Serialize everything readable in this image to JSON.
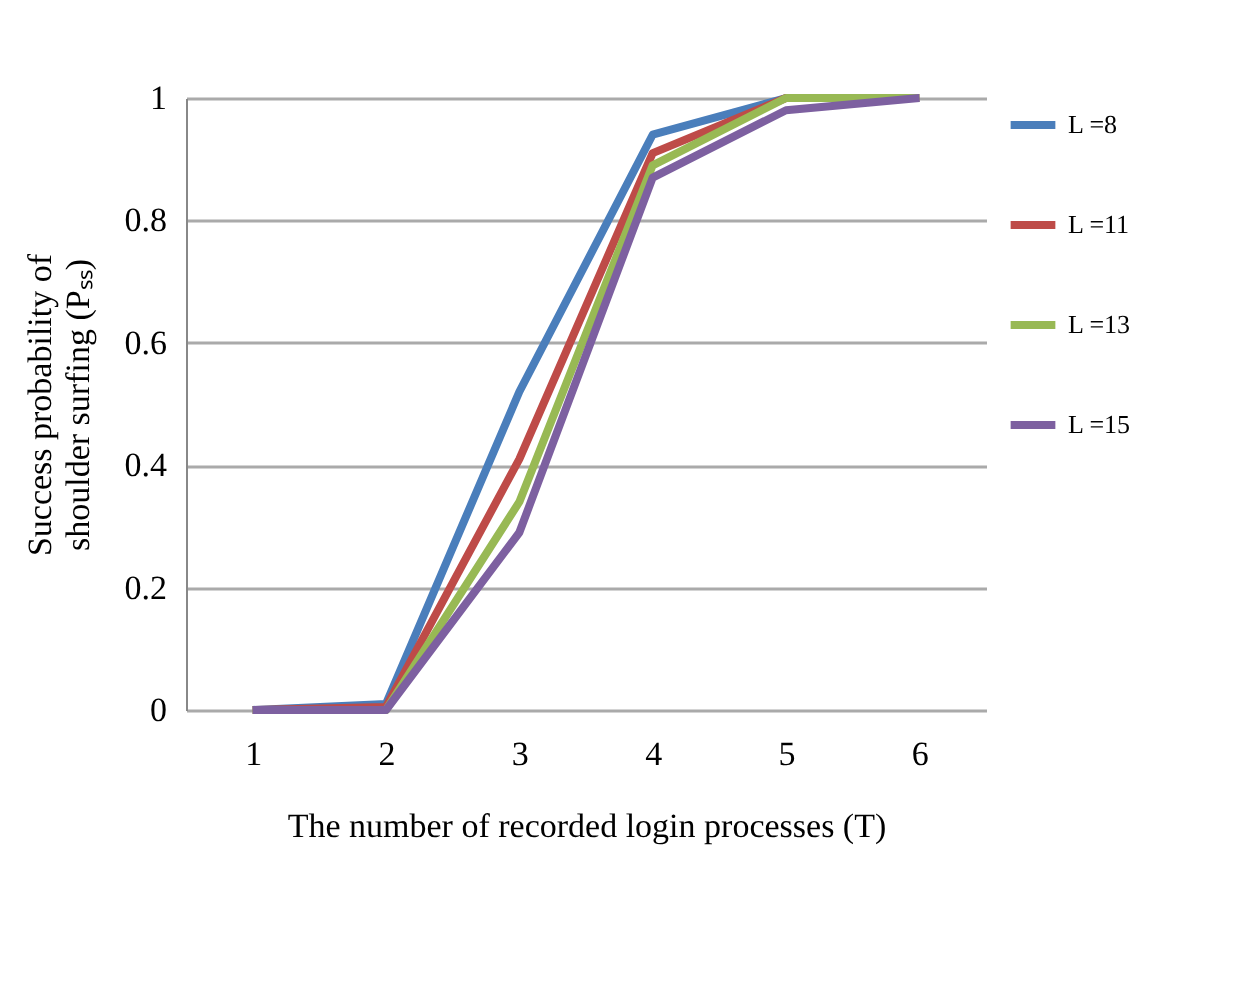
{
  "chart_data": {
    "type": "line",
    "xlabel": "The number of recorded login processes (T)",
    "ylabel": "Success probability of shoulder surfing (Pₛₛ)",
    "categories": [
      "1",
      "2",
      "3",
      "4",
      "5",
      "6"
    ],
    "series": [
      {
        "name": "L =8",
        "color": "#4a7ebb",
        "values": [
          0,
          0.01,
          0.52,
          0.94,
          1,
          1
        ]
      },
      {
        "name": "L =11",
        "color": "#be4b48",
        "values": [
          0,
          0.005,
          0.41,
          0.91,
          1,
          1
        ]
      },
      {
        "name": "L =13",
        "color": "#98b954",
        "values": [
          0,
          0,
          0.34,
          0.89,
          1,
          1
        ]
      },
      {
        "name": "L =15",
        "color": "#7d60a0",
        "values": [
          0,
          0,
          0.29,
          0.87,
          0.98,
          1
        ]
      }
    ],
    "ylim": [
      0,
      1
    ],
    "yticks": [
      0,
      0.2,
      0.4,
      0.6,
      0.8,
      1
    ],
    "grid": "y",
    "legend": "right",
    "marker": "none",
    "line_style": "solid"
  }
}
